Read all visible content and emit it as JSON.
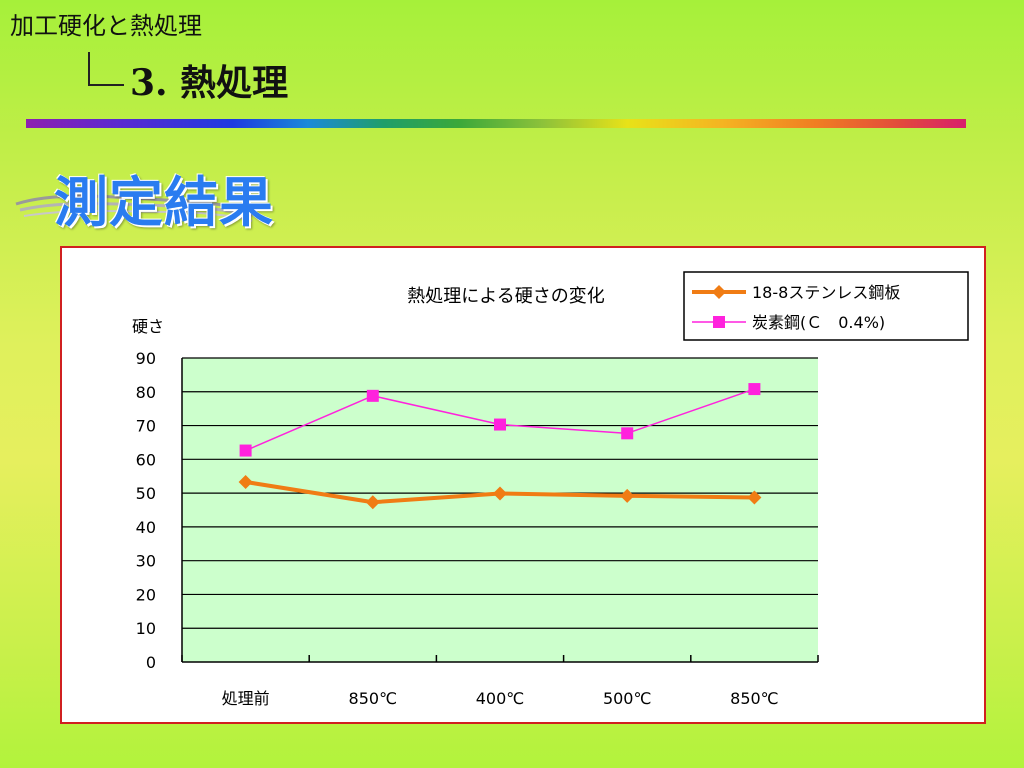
{
  "header": {
    "title": "加工硬化と熱処理",
    "section": "3. 熱処理"
  },
  "heading": "測定結果",
  "colors": {
    "series1": "#f07c14",
    "series2": "#ff22dd",
    "plot_bg": "#ccffcc",
    "frame": "#d02020"
  },
  "chart_data": {
    "type": "line",
    "title": "熱処理による硬さの変化",
    "ylabel": "硬さ",
    "xlabel": "",
    "categories": [
      "処理前",
      "850℃",
      "400℃",
      "500℃",
      "850℃"
    ],
    "ylim": [
      0,
      90
    ],
    "yticks": [
      0,
      10,
      20,
      30,
      40,
      50,
      60,
      70,
      80,
      90
    ],
    "grid": true,
    "legend_position": "top-right",
    "series": [
      {
        "name": "18-8ステンレス鋼板",
        "values": [
          53.3,
          47.3,
          49.9,
          49.2,
          48.7
        ],
        "marker": "diamond"
      },
      {
        "name": "炭素鋼(Ｃ　0.4%)",
        "values": [
          62.6,
          78.8,
          70.3,
          67.7,
          80.8
        ],
        "marker": "square"
      }
    ]
  }
}
